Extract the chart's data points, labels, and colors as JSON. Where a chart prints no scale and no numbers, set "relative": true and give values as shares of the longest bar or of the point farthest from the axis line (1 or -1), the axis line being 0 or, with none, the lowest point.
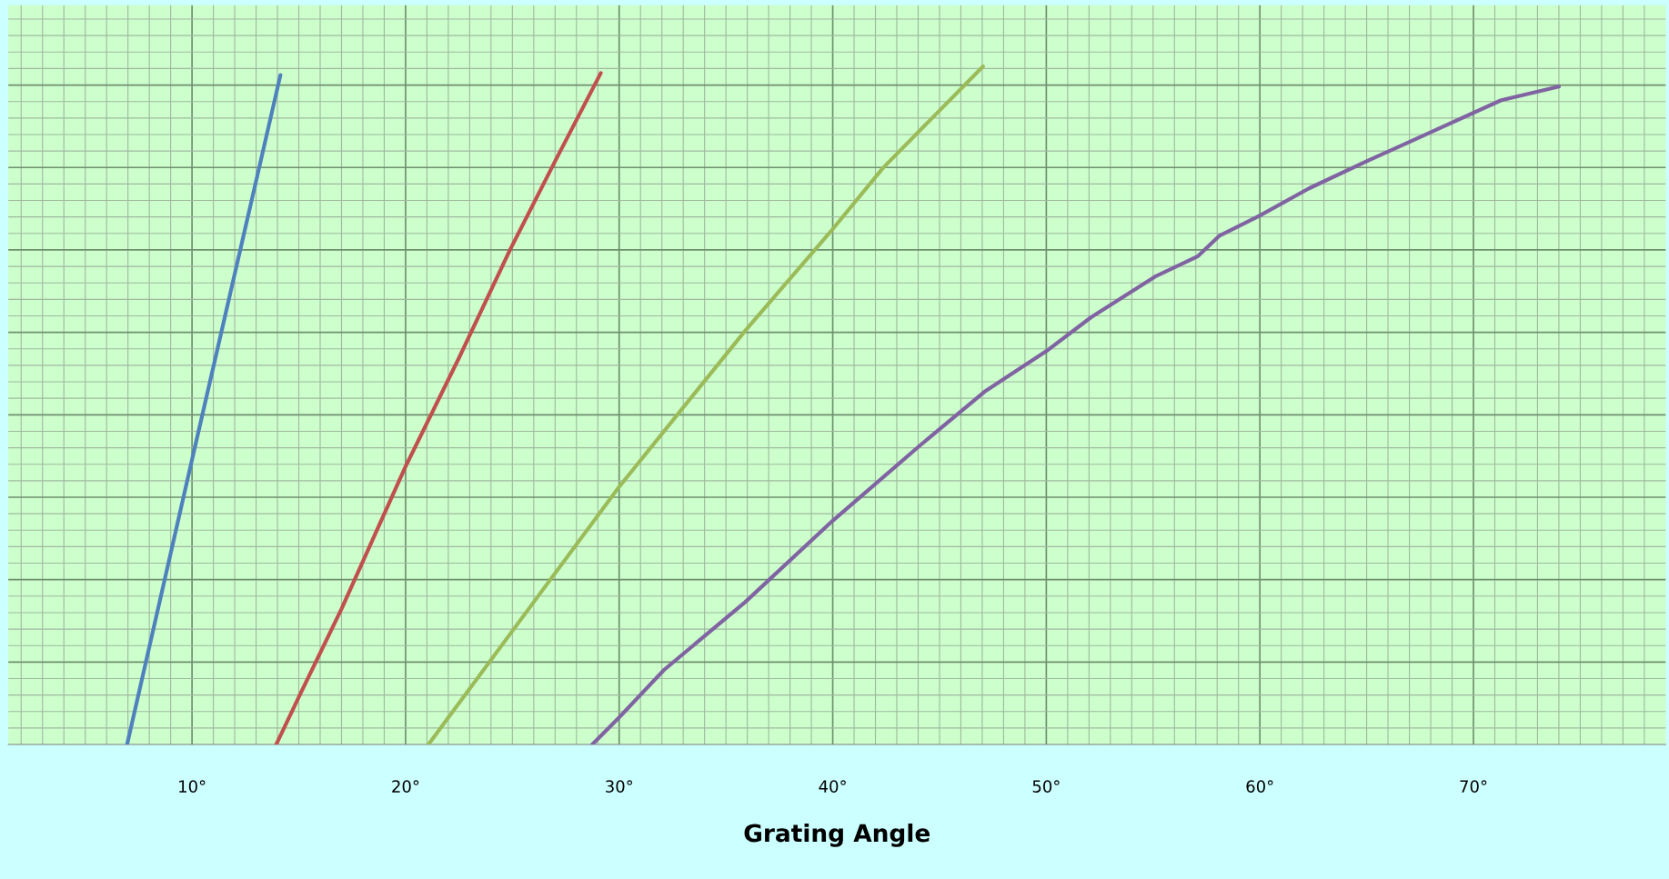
{
  "chart_data": {
    "type": "line",
    "xlabel": "Grating Angle",
    "relative": true,
    "grid": true,
    "marker": "none",
    "line_style": "solid",
    "xlim": [
      1.4,
      79
    ],
    "xticks": [
      {
        "value": 10,
        "label": "10°"
      },
      {
        "value": 20,
        "label": "20°"
      },
      {
        "value": 30,
        "label": "30°"
      },
      {
        "value": 40,
        "label": "40°"
      },
      {
        "value": 50,
        "label": "50°"
      },
      {
        "value": 60,
        "label": "60°"
      },
      {
        "value": 70,
        "label": "70°"
      }
    ],
    "tick_labels": "x",
    "series": [
      {
        "color": "#4f81bd",
        "x": [
          6.96,
          10,
          14.14
        ],
        "values": [
          0,
          0.42,
          0.987
        ]
      },
      {
        "color": "#c0504d",
        "x": [
          13.94,
          15,
          17,
          20,
          22.5,
          24.9,
          27,
          29.14
        ],
        "values": [
          0,
          0.07,
          0.2,
          0.41,
          0.57,
          0.73,
          0.86,
          0.99
        ]
      },
      {
        "color": "#9bbb59",
        "x": [
          21.07,
          26,
          30,
          35.9,
          40,
          42.35,
          47.04
        ],
        "values": [
          0,
          0.21,
          0.38,
          0.61,
          0.76,
          0.85,
          1
        ]
      },
      {
        "color": "#8064a2",
        "x": [
          28.74,
          30,
          32.1,
          35.9,
          40,
          44.05,
          47.1,
          50,
          52.1,
          55.1,
          57.1,
          58.1,
          60,
          62.3,
          65,
          68.5,
          71.3,
          74
        ],
        "values": [
          0,
          0.04,
          0.11,
          0.21,
          0.33,
          0.44,
          0.52,
          0.58,
          0.63,
          0.69,
          0.72,
          0.75,
          0.78,
          0.82,
          0.86,
          0.91,
          0.95,
          0.97
        ]
      }
    ]
  }
}
